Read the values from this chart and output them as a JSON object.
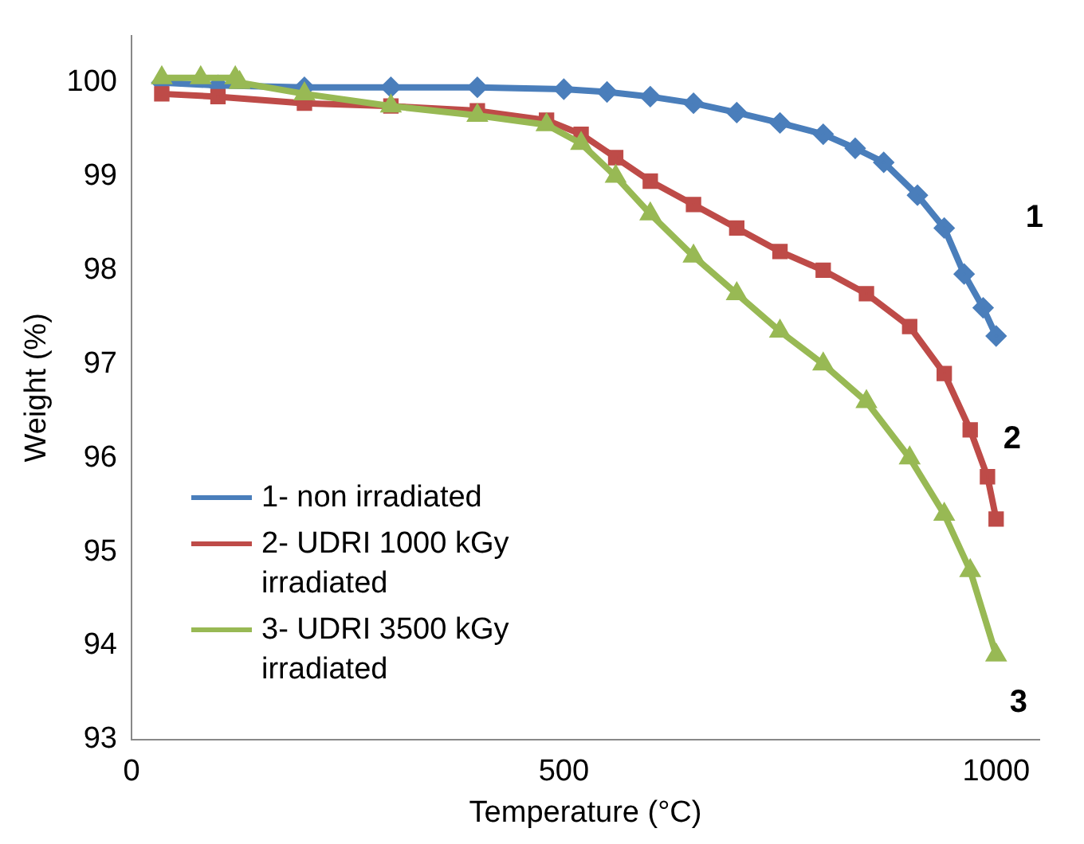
{
  "chart_data": {
    "type": "line",
    "xlabel": "Temperature (°C)",
    "ylabel": "Weight (%)",
    "xlim": [
      0,
      1050
    ],
    "xticks": [
      0,
      500,
      1000
    ],
    "ylim": [
      93,
      100.5
    ],
    "yticks": [
      93,
      94,
      95,
      96,
      97,
      98,
      99,
      100
    ],
    "legend": "bottom left",
    "series": [
      {
        "name": "1- non irradiated",
        "color": "#4a7ebb",
        "marker": "diamond",
        "x": [
          35,
          100,
          200,
          300,
          400,
          500,
          550,
          600,
          650,
          700,
          750,
          800,
          837,
          870,
          909,
          940,
          963,
          985,
          1000
        ],
        "values": [
          100,
          99.97,
          99.95,
          99.95,
          99.95,
          99.93,
          99.9,
          99.85,
          99.78,
          99.68,
          99.57,
          99.45,
          99.3,
          99.15,
          98.8,
          98.45,
          97.96,
          97.6,
          97.3
        ]
      },
      {
        "name": "2- UDRI 1000 kGy irradiated",
        "color": "#be4b48",
        "marker": "square",
        "x": [
          35,
          100,
          200,
          300,
          400,
          480,
          520,
          560,
          600,
          650,
          700,
          750,
          800,
          850,
          900,
          940,
          970,
          990,
          1000
        ],
        "values": [
          99.88,
          99.85,
          99.78,
          99.75,
          99.7,
          99.6,
          99.45,
          99.2,
          98.95,
          98.7,
          98.45,
          98.2,
          98,
          97.75,
          97.4,
          96.9,
          96.3,
          95.8,
          95.35
        ]
      },
      {
        "name": "3- UDRI 3500 kGy irradiated",
        "color": "#98b954",
        "marker": "triangle",
        "x": [
          35,
          80,
          120,
          125,
          200,
          300,
          400,
          480,
          520,
          560,
          600,
          650,
          700,
          750,
          800,
          850,
          900,
          940,
          970,
          1000
        ],
        "values": [
          100.05,
          100.05,
          100.05,
          100,
          99.88,
          99.75,
          99.65,
          99.55,
          99.35,
          99,
          98.6,
          98.15,
          97.75,
          97.35,
          97,
          96.6,
          96,
          95.4,
          94.8,
          93.9
        ]
      }
    ],
    "annotations": [
      "1",
      "2",
      "3"
    ]
  }
}
